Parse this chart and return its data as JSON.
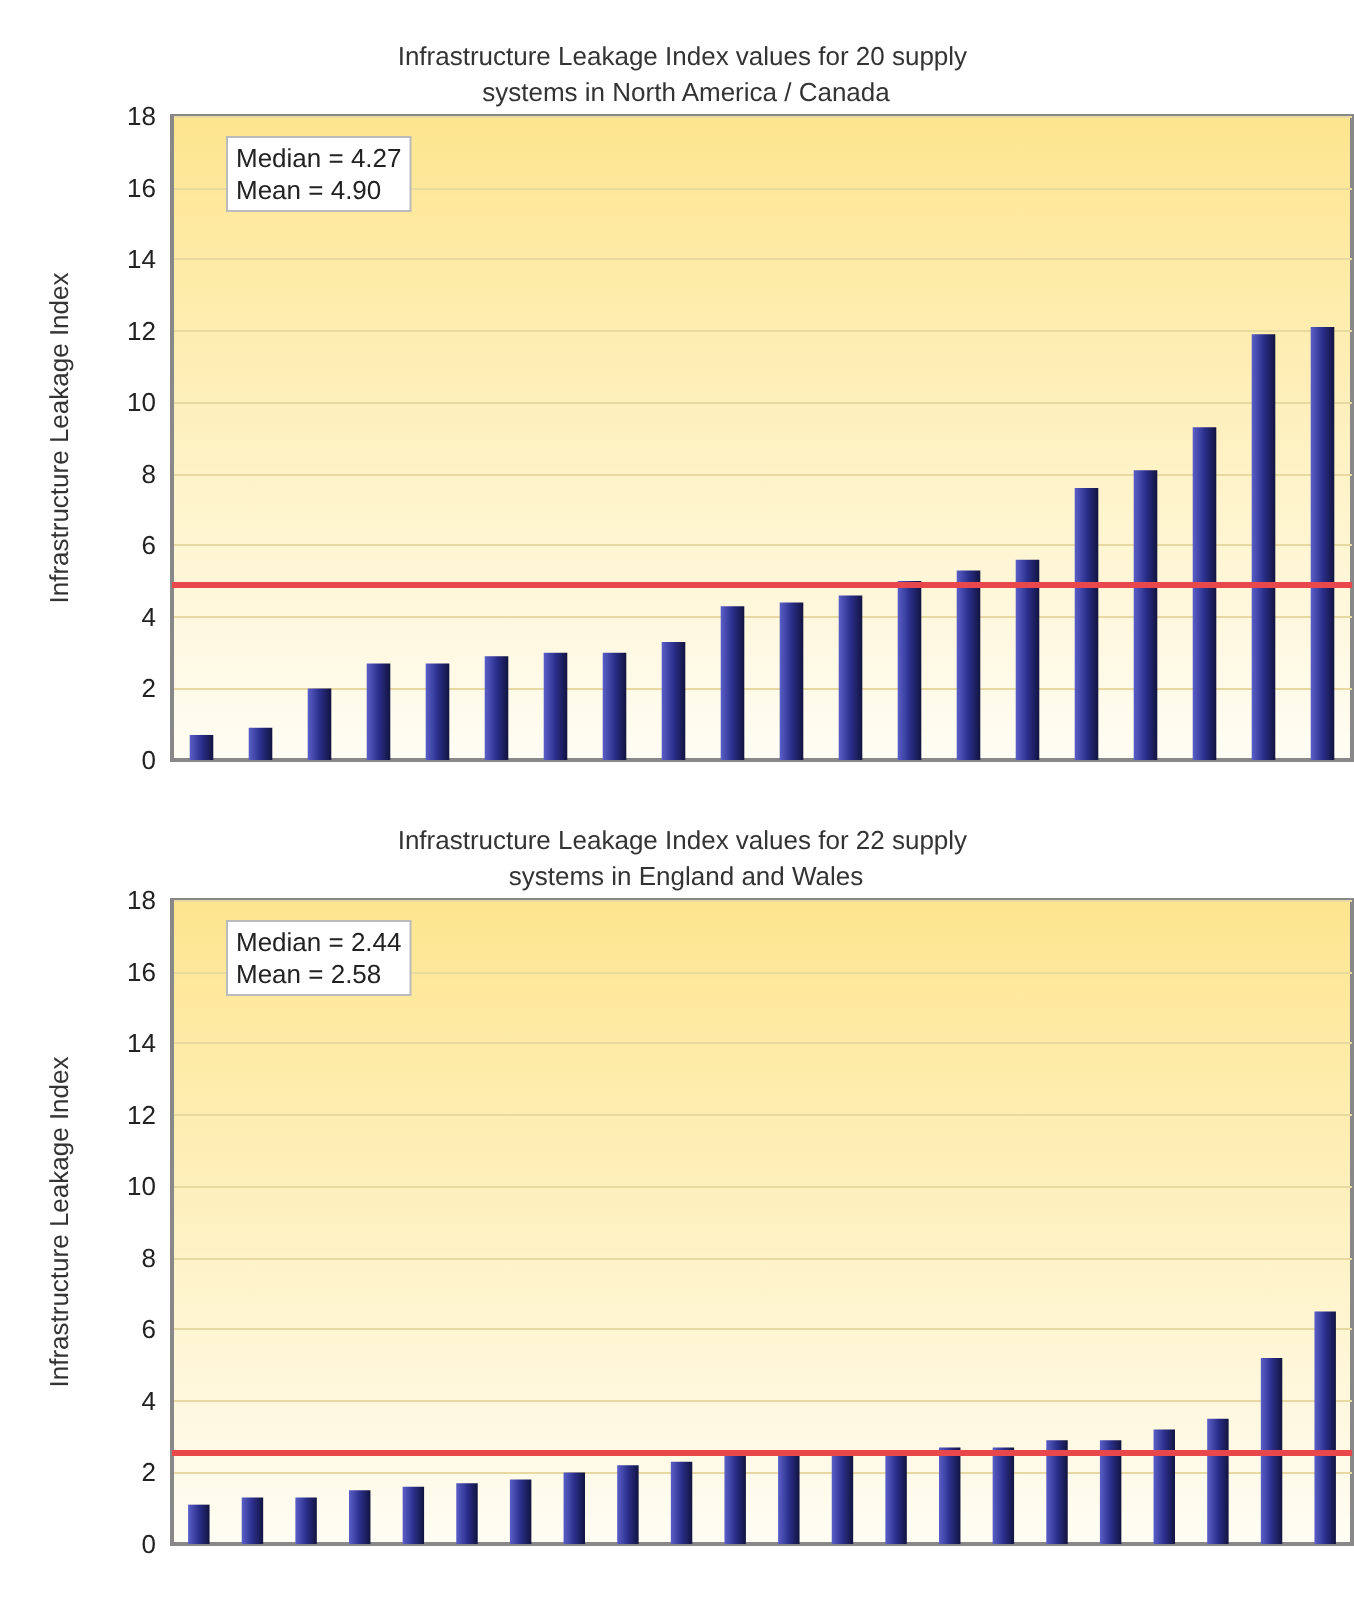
{
  "chart_data": [
    {
      "type": "bar",
      "title": "Infrastructure Leakage Index values for 20 supply systems in North America / Canada",
      "ylabel": "Infrastructure Leakage Index",
      "categories": [
        null,
        null,
        null,
        null,
        null,
        null,
        null,
        null,
        null,
        null,
        null,
        null,
        null,
        null,
        null,
        null,
        null,
        null,
        null,
        null
      ],
      "values": [
        0.7,
        0.9,
        2.0,
        2.7,
        2.7,
        2.9,
        3.0,
        3.0,
        3.3,
        4.3,
        4.4,
        4.6,
        5.0,
        5.3,
        5.6,
        7.6,
        8.1,
        9.3,
        11.9,
        12.1
      ],
      "color": "#2b2f8c",
      "ylim": [
        0,
        18
      ],
      "yticks": [
        0,
        2,
        4,
        6,
        8,
        10,
        12,
        14,
        16,
        18
      ],
      "grid": "y",
      "annotations": [
        "Median = 4.27",
        "Mean = 4.90"
      ],
      "ref_lines": [
        {
          "axis": "y",
          "value": 4.9,
          "color": "#e8474c"
        }
      ]
    },
    {
      "type": "bar",
      "title": "Infrastructure Leakage Index values for 22 supply systems in England and Wales",
      "ylabel": "Infrastructure Leakage Index",
      "categories": [
        null,
        null,
        null,
        null,
        null,
        null,
        null,
        null,
        null,
        null,
        null,
        null,
        null,
        null,
        null,
        null,
        null,
        null,
        null,
        null,
        null,
        null
      ],
      "values": [
        1.1,
        1.3,
        1.3,
        1.5,
        1.6,
        1.7,
        1.8,
        2.0,
        2.2,
        2.3,
        2.5,
        2.5,
        2.5,
        2.5,
        2.7,
        2.7,
        2.9,
        2.9,
        3.2,
        3.5,
        5.2,
        6.5
      ],
      "color": "#2b2f8c",
      "ylim": [
        0,
        18
      ],
      "yticks": [
        0,
        2,
        4,
        6,
        8,
        10,
        12,
        14,
        16,
        18
      ],
      "grid": "y",
      "annotations": [
        "Median = 2.44",
        "Mean = 2.58"
      ],
      "ref_lines": [
        {
          "axis": "y",
          "value": 2.58,
          "color": "#e8474c"
        }
      ]
    }
  ]
}
